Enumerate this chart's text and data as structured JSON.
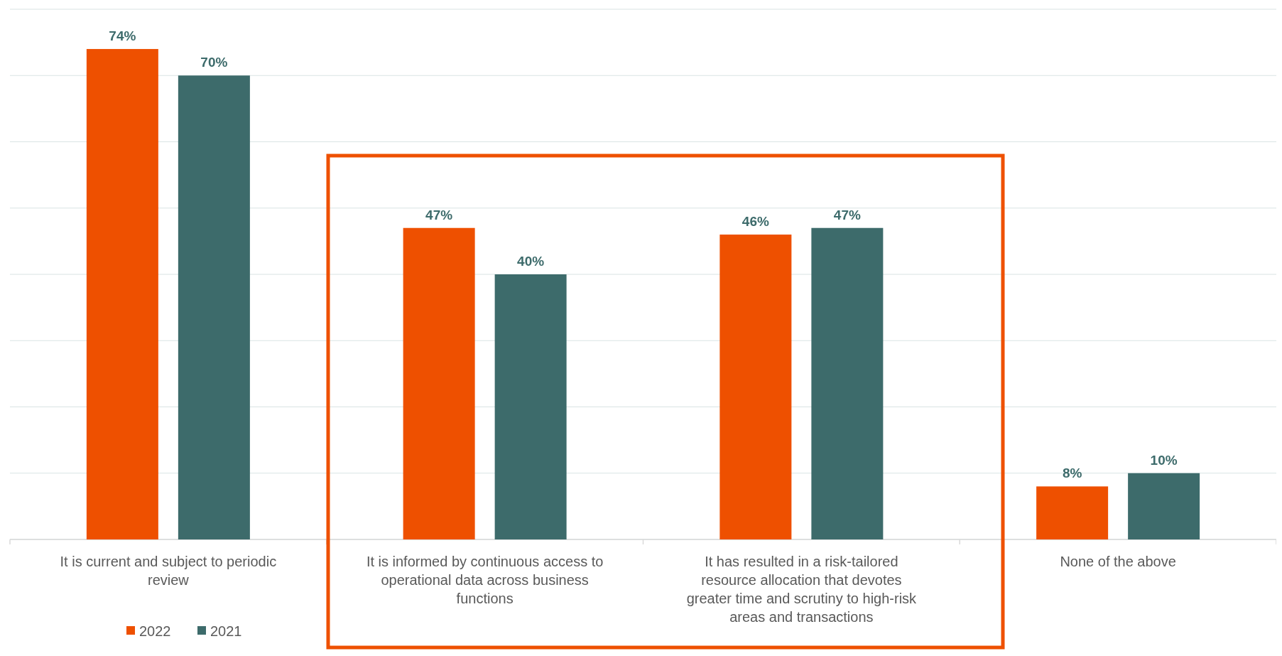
{
  "chart_data": {
    "type": "bar",
    "categories": [
      "It is current and subject to periodic review",
      "It is informed by continuous access to operational data across business functions",
      "It has resulted in a risk-tailored resource allocation that devotes greater time and scrutiny to high-risk areas and transactions",
      "None of the above"
    ],
    "series": [
      {
        "name": "2022",
        "color": "#ee5000",
        "values": [
          74,
          47,
          46,
          8
        ],
        "value_labels": [
          "74%",
          "47%",
          "46%",
          "8%"
        ]
      },
      {
        "name": "2021",
        "color": "#3d6b6b",
        "values": [
          70,
          40,
          47,
          10
        ],
        "value_labels": [
          "70%",
          "40%",
          "47%",
          "10%"
        ]
      }
    ],
    "ylim": [
      0,
      80
    ],
    "yticks": [
      {
        "value": 0,
        "label": null
      },
      {
        "value": 10,
        "label": null
      },
      {
        "value": 20,
        "label": null
      },
      {
        "value": 30,
        "label": null
      },
      {
        "value": 40,
        "label": null
      },
      {
        "value": 50,
        "label": null
      },
      {
        "value": 60,
        "label": null
      },
      {
        "value": 70,
        "label": null
      },
      {
        "value": 80,
        "label": null
      }
    ],
    "grid": "y",
    "legend": "bottom left",
    "tick_labels": "x"
  }
}
